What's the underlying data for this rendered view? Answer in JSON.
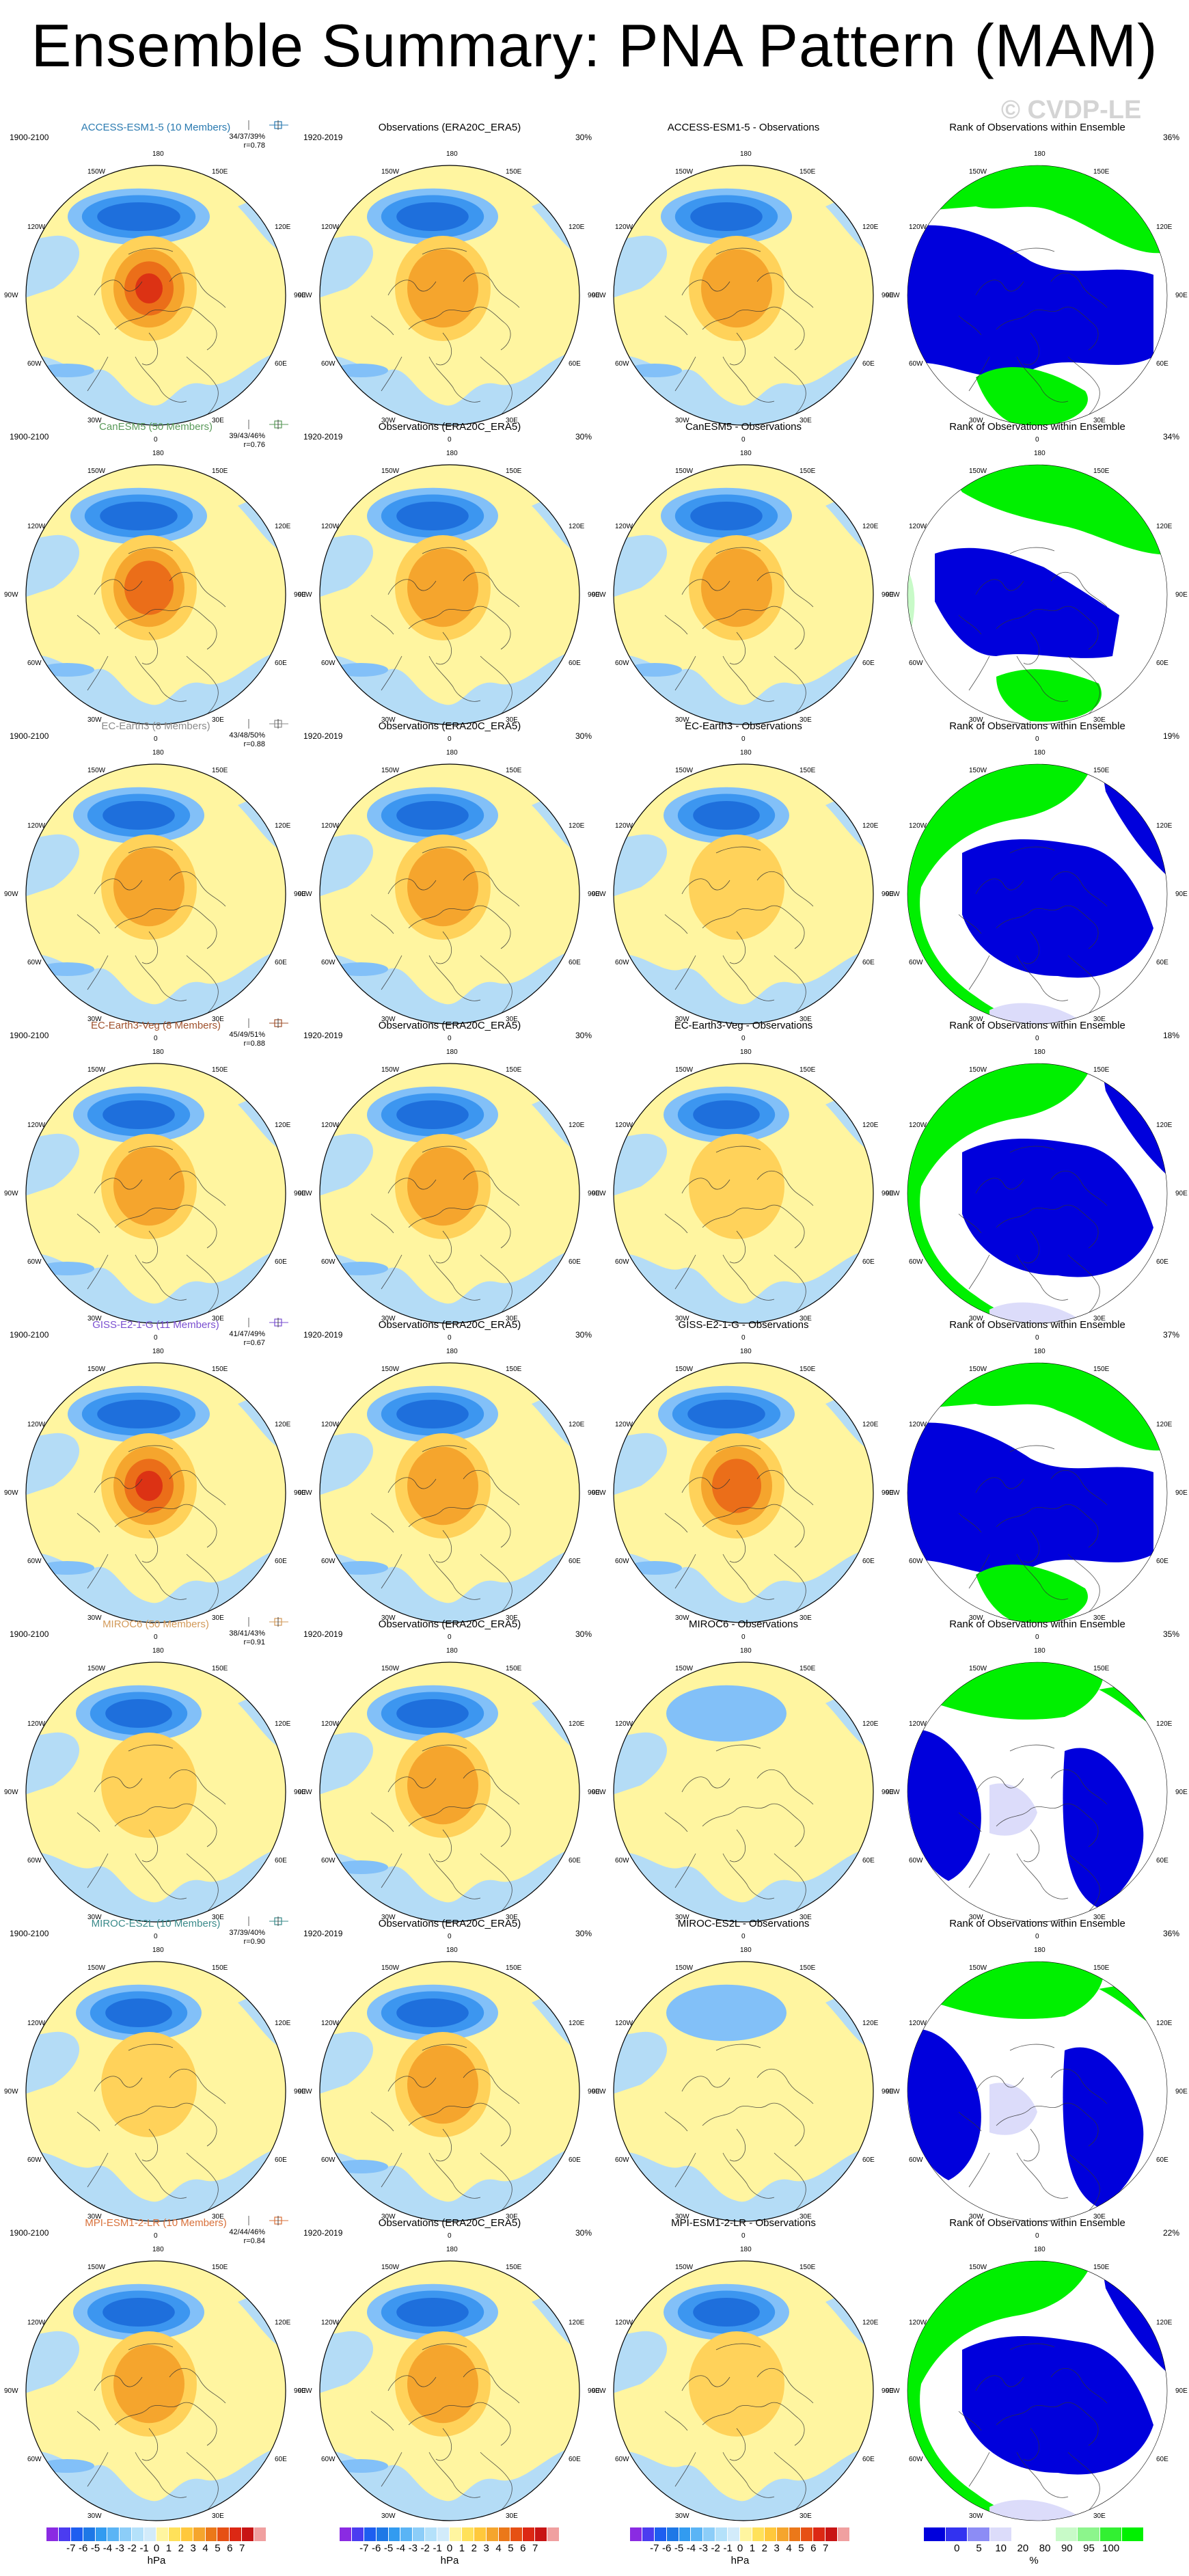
{
  "title": "Ensemble Summary: PNA Pattern (MAM)",
  "watermark": "© CVDP-LE",
  "obs_title": "Observations (ERA20C_ERA5)",
  "rank_title": "Rank of Observations within Ensemble",
  "obs_period": "1920-2019",
  "obs_pct": "30%",
  "colors": {
    "neg3": "#1e6fdc",
    "neg2": "#3c96f0",
    "neg1": "#82c0f8",
    "neg0": "#b4dcf6",
    "pos0": "#fff5a0",
    "pos1": "#ffd25a",
    "pos2": "#f5a52d",
    "pos3": "#eb6e19",
    "pos4": "#dc3214",
    "rank_blue": "#0000dc",
    "rank_green": "#00f000",
    "rank_lav": "#dcdcfa",
    "rank_lgreen": "#c8fac8"
  },
  "map_labels": {
    "top": "180",
    "bottom": "0",
    "left": "90W",
    "right": "90E",
    "ul1": "150W",
    "ul2": "120W",
    "ur1": "150E",
    "ur2": "120E",
    "ll1": "60W",
    "ll2": "30W",
    "lr1": "60E",
    "lr2": "30E"
  },
  "rows": [
    {
      "model": "ACCESS-ESM1-5 (10 Members)",
      "color": "#2a7ab0",
      "period": "1900-2100",
      "stats1": "34/37/39%",
      "stats2": "r=0.78",
      "diff_title": "ACCESS-ESM1-5 - Observations",
      "rank_pct": "36%",
      "m_strength": 4,
      "d_strength": 2,
      "rank_variant": 0
    },
    {
      "model": "CanESM5 (50 Members)",
      "color": "#5a9a5a",
      "period": "1900-2100",
      "stats1": "39/43/46%",
      "stats2": "r=0.76",
      "diff_title": "CanESM5 - Observations",
      "rank_pct": "34%",
      "m_strength": 3,
      "d_strength": 2,
      "rank_variant": 1
    },
    {
      "model": "EC-Earth3 (8 Members)",
      "color": "#8a8a8a",
      "period": "1900-2100",
      "stats1": "43/48/50%",
      "stats2": "r=0.88",
      "diff_title": "EC-Earth3 - Observations",
      "rank_pct": "19%",
      "m_strength": 2,
      "d_strength": 1,
      "rank_variant": 2
    },
    {
      "model": "EC-Earth3-Veg (8 Members)",
      "color": "#a0522d",
      "period": "1900-2100",
      "stats1": "45/49/51%",
      "stats2": "r=0.88",
      "diff_title": "EC-Earth3-Veg - Observations",
      "rank_pct": "18%",
      "m_strength": 2,
      "d_strength": 1,
      "rank_variant": 2
    },
    {
      "model": "GISS-E2-1-G (11 Members)",
      "color": "#7a4fd0",
      "period": "1900-2100",
      "stats1": "41/47/49%",
      "stats2": "r=0.67",
      "diff_title": "GISS-E2-1-G - Observations",
      "rank_pct": "37%",
      "m_strength": 4,
      "d_strength": 3,
      "rank_variant": 0
    },
    {
      "model": "MIROC6 (50 Members)",
      "color": "#d29a5a",
      "period": "1900-2100",
      "stats1": "38/41/43%",
      "stats2": "r=0.91",
      "diff_title": "MIROC6 - Observations",
      "rank_pct": "35%",
      "m_strength": 1,
      "d_strength": 0,
      "rank_variant": 3
    },
    {
      "model": "MIROC-ES2L (10 Members)",
      "color": "#3a8a8a",
      "period": "1900-2100",
      "stats1": "37/39/40%",
      "stats2": "r=0.90",
      "diff_title": "MIROC-ES2L - Observations",
      "rank_pct": "36%",
      "m_strength": 1,
      "d_strength": 0,
      "rank_variant": 3
    },
    {
      "model": "MPI-ESM1-2-LR (10 Members)",
      "color": "#d8703a",
      "period": "1900-2100",
      "stats1": "42/44/46%",
      "stats2": "r=0.84",
      "diff_title": "MPI-ESM1-2-LR - Observations",
      "rank_pct": "22%",
      "m_strength": 2,
      "d_strength": 1,
      "rank_variant": 2
    }
  ],
  "colorbar_hpa": {
    "ticks": [
      "-7",
      "-6",
      "-5",
      "-4",
      "-3",
      "-2",
      "-1",
      "0",
      "1",
      "2",
      "3",
      "4",
      "5",
      "6",
      "7"
    ],
    "unit": "hPa",
    "colors": [
      "#8a2be2",
      "#4b3cf0",
      "#1e5ef0",
      "#1e78e6",
      "#329bf0",
      "#5ab4f5",
      "#8ccdf8",
      "#b4e1fa",
      "#d2ebfa",
      "#fff5a0",
      "#ffe15a",
      "#ffc83c",
      "#f5a52d",
      "#eb7819",
      "#e65014",
      "#dc2814",
      "#c81414",
      "#f0a0a0"
    ]
  },
  "colorbar_rank": {
    "ticks": [
      "0",
      "5",
      "10",
      "20",
      "80",
      "90",
      "95",
      "100"
    ],
    "unit": "%",
    "colors": [
      "#0000dc",
      "#3232f0",
      "#8c8cf5",
      "#dcdcfa",
      "#ffffff",
      "#ffffff",
      "#c8fac8",
      "#8cf58c",
      "#32f032",
      "#00f000"
    ]
  }
}
